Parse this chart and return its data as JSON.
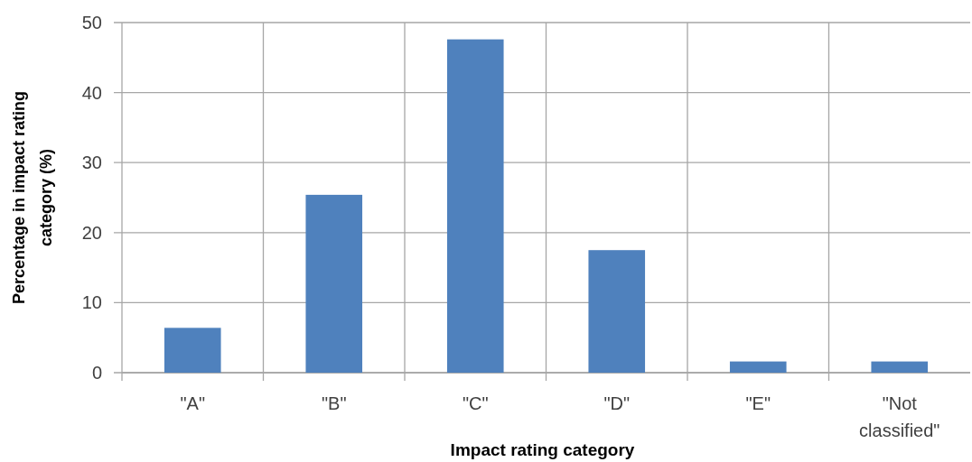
{
  "chart_data": {
    "type": "bar",
    "xlabel": "Impact rating category",
    "ylabel": "Percentage in impact rating category (%)",
    "categories": [
      "\"A\"",
      "\"B\"",
      "\"C\"",
      "\"D\"",
      "\"E\"",
      "\"Not classified\""
    ],
    "values": [
      6.4,
      25.4,
      47.6,
      17.5,
      1.6,
      1.6
    ],
    "color": "#4f81bd",
    "ylim": [
      0,
      50
    ],
    "yticks": [
      0,
      10,
      20,
      30,
      40,
      50
    ],
    "grid": true
  }
}
